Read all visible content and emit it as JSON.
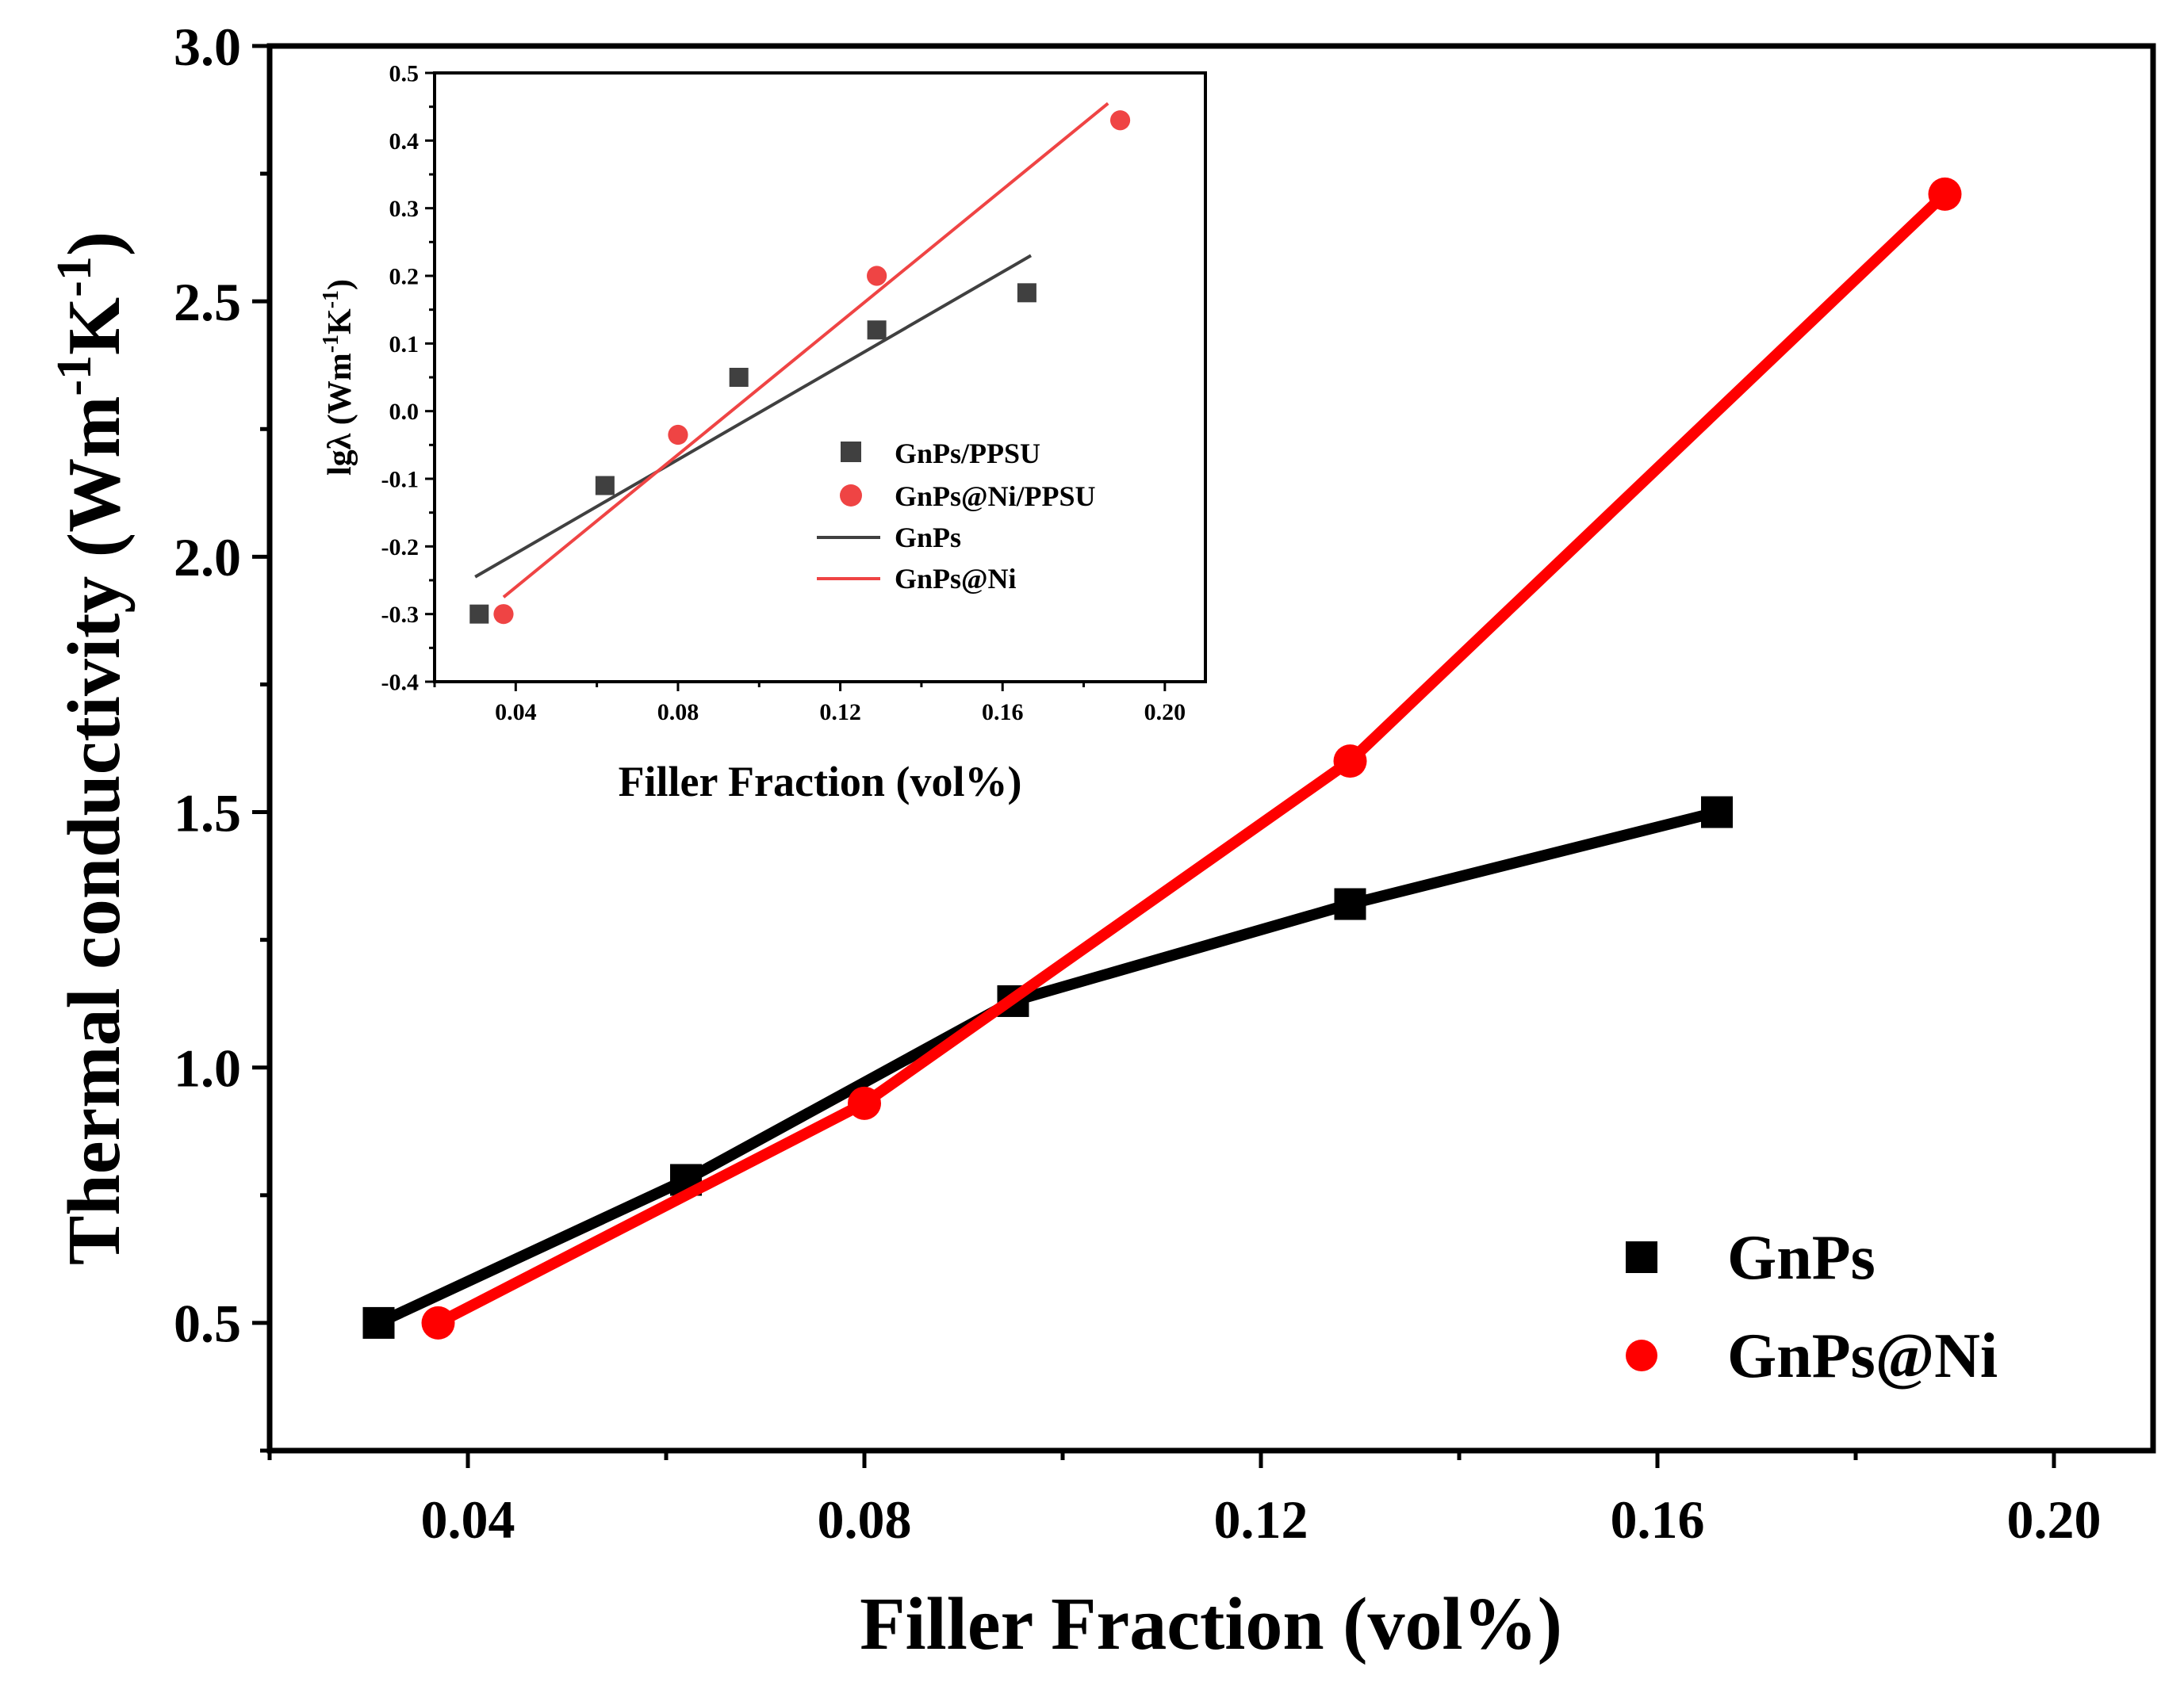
{
  "colors": {
    "gnps_main": "#000000",
    "gnpsni_main": "#ff0000",
    "gnps_inset": "#404040",
    "gnpsni_inset": "#ef4444"
  },
  "chart_data": [
    {
      "id": "main",
      "type": "line",
      "xlabel": "Filler Fraction (vol%)",
      "ylabel_parts": [
        "Thermal conductivity (Wm",
        "-1",
        "K",
        "-1",
        ")"
      ],
      "xlim": [
        0.02,
        0.21
      ],
      "ylim": [
        0.25,
        3.0
      ],
      "xticks": [
        0.04,
        0.08,
        0.12,
        0.16,
        0.2
      ],
      "xtick_labels": [
        "0.04",
        "0.08",
        "0.12",
        "0.16",
        "0.20"
      ],
      "yticks": [
        0.5,
        1.0,
        1.5,
        2.0,
        2.5,
        3.0
      ],
      "ytick_labels": [
        "0.5",
        "1.0",
        "1.5",
        "2.0",
        "2.5",
        "3.0"
      ],
      "legend_position": "bottom-right",
      "series": [
        {
          "name": "GnPs",
          "marker": "square",
          "x": [
            0.031,
            0.062,
            0.095,
            0.129,
            0.166
          ],
          "y": [
            0.5,
            0.78,
            1.13,
            1.32,
            1.5
          ]
        },
        {
          "name": "GnPs@Ni",
          "marker": "circle",
          "x": [
            0.037,
            0.08,
            0.129,
            0.189
          ],
          "y": [
            0.5,
            0.93,
            1.6,
            2.71
          ]
        }
      ]
    },
    {
      "id": "inset",
      "type": "scatter",
      "xlabel": "Filler Fraction (vol%)",
      "ylabel_parts": [
        "lgλ (Wm",
        "-1",
        "K",
        "-1",
        ")"
      ],
      "xlim": [
        0.02,
        0.21
      ],
      "ylim": [
        -0.4,
        0.5
      ],
      "xticks": [
        0.04,
        0.08,
        0.12,
        0.16,
        0.2
      ],
      "xtick_labels": [
        "0.04",
        "0.08",
        "0.12",
        "0.16",
        "0.20"
      ],
      "yticks": [
        -0.4,
        -0.3,
        -0.2,
        -0.1,
        0.0,
        0.1,
        0.2,
        0.3,
        0.4,
        0.5
      ],
      "ytick_labels": [
        "-0.4",
        "-0.3",
        "-0.2",
        "-0.1",
        "0.0",
        "0.1",
        "0.2",
        "0.3",
        "0.4",
        "0.5"
      ],
      "legend_position": "center",
      "series": [
        {
          "name": "GnPs/PPSU",
          "marker": "square",
          "x": [
            0.031,
            0.062,
            0.095,
            0.129,
            0.166
          ],
          "y": [
            -0.3,
            -0.11,
            0.05,
            0.12,
            0.175
          ]
        },
        {
          "name": "GnPs@Ni/PPSU",
          "marker": "circle",
          "x": [
            0.037,
            0.08,
            0.129,
            0.189
          ],
          "y": [
            -0.3,
            -0.035,
            0.2,
            0.43
          ]
        }
      ],
      "fits": [
        {
          "name": "GnPs",
          "x": [
            0.03,
            0.167
          ],
          "y": [
            -0.245,
            0.23
          ]
        },
        {
          "name": "GnPs@Ni",
          "x": [
            0.037,
            0.186
          ],
          "y": [
            -0.275,
            0.455
          ]
        }
      ]
    }
  ]
}
